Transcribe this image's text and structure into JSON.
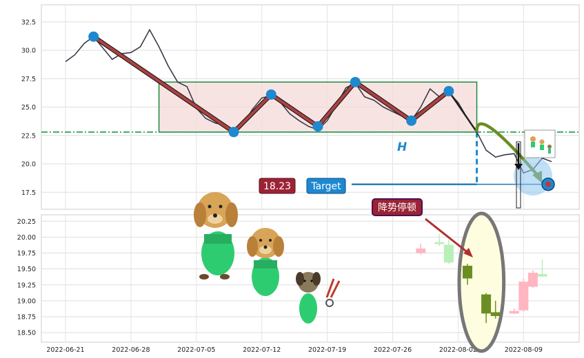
{
  "colors": {
    "price_line": "#3a3a48",
    "pattern_line": "#b04040",
    "pivot": "#1e88d0",
    "zone_fill": "#f6dada",
    "zone_stroke": "#1a8a3a",
    "support": "#1a9a4a",
    "target": "#2a7fb8",
    "arrow": "#6b8e23",
    "price_badge": "#9b2335",
    "target_badge": "#1e88d0",
    "annotation_badge": "#9b2335",
    "candle_up": "#ffb6c1",
    "candle_down": "#6b8e23",
    "candle_up_light": "#b8f0b8",
    "highlight_fill": "#fffde0",
    "highlight_stroke": "#777777"
  },
  "badges": {
    "price": "18.23",
    "target": "Target",
    "annotation": "降势停顿"
  },
  "labels": {
    "height_marker": "H"
  },
  "chart_data": [
    {
      "type": "line",
      "panel": "price",
      "x_axis": {
        "start": "2022-06-21",
        "end": "2022-08-12"
      },
      "ylim": [
        16,
        34
      ],
      "yticks": [
        17.5,
        20.0,
        22.5,
        25.0,
        27.5,
        30.0,
        32.5
      ],
      "ytick_labels": [
        "17.5",
        "20.0",
        "22.5",
        "25.0",
        "27.5",
        "30.0",
        "32.5"
      ],
      "grid": true,
      "series": [
        {
          "values": [
            {
              "x": "2022-06-21",
              "y": 29.0
            },
            {
              "x": "2022-06-22",
              "y": 29.6
            },
            {
              "x": "2022-06-23",
              "y": 30.6
            },
            {
              "x": "2022-06-24",
              "y": 31.2
            },
            {
              "x": "2022-06-25",
              "y": 30.2
            },
            {
              "x": "2022-06-26",
              "y": 29.2
            },
            {
              "x": "2022-06-27",
              "y": 29.7
            },
            {
              "x": "2022-06-28",
              "y": 29.8
            },
            {
              "x": "2022-06-29",
              "y": 30.3
            },
            {
              "x": "2022-06-30",
              "y": 31.8
            },
            {
              "x": "2022-07-01",
              "y": 30.3
            },
            {
              "x": "2022-07-02",
              "y": 28.6
            },
            {
              "x": "2022-07-03",
              "y": 27.2
            },
            {
              "x": "2022-07-04",
              "y": 26.8
            },
            {
              "x": "2022-07-05",
              "y": 24.9
            },
            {
              "x": "2022-07-06",
              "y": 24.0
            },
            {
              "x": "2022-07-07",
              "y": 23.6
            },
            {
              "x": "2022-07-08",
              "y": 23.4
            },
            {
              "x": "2022-07-09",
              "y": 22.8
            },
            {
              "x": "2022-07-10",
              "y": 23.5
            },
            {
              "x": "2022-07-11",
              "y": 24.8
            },
            {
              "x": "2022-07-12",
              "y": 25.8
            },
            {
              "x": "2022-07-13",
              "y": 26.0
            },
            {
              "x": "2022-07-14",
              "y": 25.4
            },
            {
              "x": "2022-07-15",
              "y": 24.4
            },
            {
              "x": "2022-07-16",
              "y": 23.8
            },
            {
              "x": "2022-07-17",
              "y": 23.3
            },
            {
              "x": "2022-07-18",
              "y": 23.0
            },
            {
              "x": "2022-07-19",
              "y": 23.8
            },
            {
              "x": "2022-07-20",
              "y": 25.2
            },
            {
              "x": "2022-07-21",
              "y": 26.7
            },
            {
              "x": "2022-07-22",
              "y": 27.1
            },
            {
              "x": "2022-07-23",
              "y": 25.9
            },
            {
              "x": "2022-07-24",
              "y": 25.6
            },
            {
              "x": "2022-07-25",
              "y": 25.0
            },
            {
              "x": "2022-07-26",
              "y": 24.6
            },
            {
              "x": "2022-07-27",
              "y": 24.2
            },
            {
              "x": "2022-07-28",
              "y": 23.8
            },
            {
              "x": "2022-07-29",
              "y": 25.0
            },
            {
              "x": "2022-07-30",
              "y": 26.6
            },
            {
              "x": "2022-07-31",
              "y": 25.9
            },
            {
              "x": "2022-08-01",
              "y": 26.3
            },
            {
              "x": "2022-08-02",
              "y": 25.4
            },
            {
              "x": "2022-08-03",
              "y": 24.0
            },
            {
              "x": "2022-08-04",
              "y": 22.8
            },
            {
              "x": "2022-08-05",
              "y": 21.2
            },
            {
              "x": "2022-08-06",
              "y": 20.6
            },
            {
              "x": "2022-08-07",
              "y": 20.8
            },
            {
              "x": "2022-08-08",
              "y": 20.9
            },
            {
              "x": "2022-08-09",
              "y": 19.2
            },
            {
              "x": "2022-08-10",
              "y": 19.5
            },
            {
              "x": "2022-08-11",
              "y": 20.5
            },
            {
              "x": "2022-08-12",
              "y": 20.2
            }
          ]
        }
      ],
      "pattern_pivots": [
        {
          "x": "2022-06-24",
          "y": 31.2
        },
        {
          "x": "2022-07-09",
          "y": 22.8
        },
        {
          "x": "2022-07-13",
          "y": 26.1
        },
        {
          "x": "2022-07-18",
          "y": 23.3
        },
        {
          "x": "2022-07-22",
          "y": 27.2
        },
        {
          "x": "2022-07-28",
          "y": 23.8
        },
        {
          "x": "2022-08-01",
          "y": 26.4
        }
      ],
      "consolidation_zone": {
        "x_start": "2022-07-01",
        "x_end": "2022-08-04",
        "y_low": 22.8,
        "y_high": 27.2
      },
      "support_level": 22.8,
      "target_level": 18.2
    },
    {
      "type": "candlestick",
      "panel": "lower",
      "x_axis": {
        "start": "2022-06-21",
        "end": "2022-08-12"
      },
      "xtick_labels": [
        "2022-06-21",
        "2022-06-28",
        "2022-07-05",
        "2022-07-12",
        "2022-07-19",
        "2022-07-26",
        "2022-08-02",
        "2022-08-09"
      ],
      "ylim": [
        18.35,
        20.35
      ],
      "yticks": [
        18.5,
        18.75,
        19.0,
        19.25,
        19.5,
        19.75,
        20.0,
        20.25
      ],
      "ytick_labels": [
        "18.50",
        "18.75",
        "19.00",
        "19.25",
        "19.50",
        "19.75",
        "20.00",
        "20.25"
      ],
      "grid": true,
      "candles": [
        {
          "x": "2022-07-29",
          "open": 19.75,
          "close": 19.82,
          "high": 19.9,
          "low": 19.72,
          "style": "up"
        },
        {
          "x": "2022-07-31",
          "open": 19.89,
          "close": 19.92,
          "high": 20.05,
          "low": 19.86,
          "style": "up_light"
        },
        {
          "x": "2022-08-01",
          "open": 19.6,
          "close": 19.88,
          "high": 19.96,
          "low": 19.58,
          "style": "up_light"
        },
        {
          "x": "2022-08-03",
          "open": 19.55,
          "close": 19.35,
          "high": 19.58,
          "low": 19.25,
          "style": "down"
        },
        {
          "x": "2022-08-05",
          "open": 19.1,
          "close": 18.8,
          "high": 19.12,
          "low": 18.65,
          "style": "down"
        },
        {
          "x": "2022-08-06",
          "open": 18.82,
          "close": 18.76,
          "high": 19.0,
          "low": 18.72,
          "style": "down"
        },
        {
          "x": "2022-08-08",
          "open": 18.8,
          "close": 18.84,
          "high": 18.88,
          "low": 18.79,
          "style": "up"
        },
        {
          "x": "2022-08-09",
          "open": 18.85,
          "close": 19.3,
          "high": 19.35,
          "low": 18.83,
          "style": "up"
        },
        {
          "x": "2022-08-10",
          "open": 19.22,
          "close": 19.44,
          "high": 19.48,
          "low": 19.2,
          "style": "up"
        },
        {
          "x": "2022-08-11",
          "open": 19.38,
          "close": 19.42,
          "high": 19.65,
          "low": 19.38,
          "style": "up_light"
        }
      ],
      "highlight_window": {
        "x_start": "2022-08-03",
        "x_end": "2022-08-06"
      }
    }
  ]
}
